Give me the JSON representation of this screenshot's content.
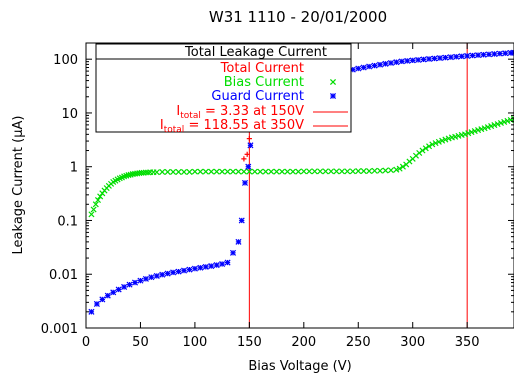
{
  "chart_data": {
    "type": "scatter",
    "title": "W31 1110 - 20/01/2000",
    "xlabel": "Bias Voltage (V)",
    "ylabel": "Leakage Current (µA)",
    "xlim": [
      0,
      393
    ],
    "ylim": [
      0.001,
      200
    ],
    "yscale": "log",
    "xticks": [
      0,
      50,
      100,
      150,
      200,
      250,
      300,
      350
    ],
    "yticks": [
      {
        "value": 0.001,
        "label": "0.001"
      },
      {
        "value": 0.01,
        "label": "0.01"
      },
      {
        "value": 0.1,
        "label": "0.1"
      },
      {
        "value": 1,
        "label": "1"
      },
      {
        "value": 10,
        "label": "10"
      },
      {
        "value": 100,
        "label": "100"
      }
    ],
    "legend": {
      "title": "Total Leakage Current",
      "placement": "top-left",
      "entries": [
        {
          "name": "Total Current",
          "color": "#ff0000",
          "marker": "plus"
        },
        {
          "name": "Bias Current",
          "color": "#00dd00",
          "marker": "cross"
        },
        {
          "name": "Guard Current",
          "color": "#0000ff",
          "marker": "star"
        }
      ],
      "annotations": [
        {
          "prefix": "I",
          "sub": "total",
          "rest": " = 3.33 at 150V",
          "color": "#ff0000"
        },
        {
          "prefix": "I",
          "sub": "total",
          "rest": " = 118.55 at 350V",
          "color": "#ff0000"
        }
      ]
    },
    "reference_lines": [
      {
        "x": 150,
        "color": "#ff0000"
      },
      {
        "x": 350,
        "color": "#ff0000"
      }
    ],
    "series": [
      {
        "name": "Total Current",
        "color": "#ff0000",
        "marker": "plus",
        "points": [
          [
            145,
            1.4
          ],
          [
            148,
            1.7
          ],
          [
            150,
            3.33
          ]
        ]
      },
      {
        "name": "Bias Current",
        "color": "#00dd00",
        "marker": "cross",
        "points": [
          [
            5,
            0.13
          ],
          [
            7,
            0.16
          ],
          [
            9,
            0.2
          ],
          [
            11,
            0.24
          ],
          [
            13,
            0.28
          ],
          [
            15,
            0.32
          ],
          [
            17,
            0.36
          ],
          [
            19,
            0.4
          ],
          [
            21,
            0.44
          ],
          [
            23,
            0.48
          ],
          [
            25,
            0.52
          ],
          [
            27,
            0.55
          ],
          [
            29,
            0.58
          ],
          [
            31,
            0.61
          ],
          [
            33,
            0.63
          ],
          [
            35,
            0.66
          ],
          [
            37,
            0.68
          ],
          [
            39,
            0.7
          ],
          [
            41,
            0.71
          ],
          [
            43,
            0.73
          ],
          [
            45,
            0.74
          ],
          [
            47,
            0.75
          ],
          [
            49,
            0.76
          ],
          [
            51,
            0.77
          ],
          [
            53,
            0.77
          ],
          [
            55,
            0.78
          ],
          [
            57,
            0.78
          ],
          [
            59,
            0.79
          ],
          [
            62,
            0.79
          ],
          [
            65,
            0.79
          ],
          [
            70,
            0.8
          ],
          [
            75,
            0.8
          ],
          [
            80,
            0.8
          ],
          [
            85,
            0.8
          ],
          [
            90,
            0.8
          ],
          [
            95,
            0.8
          ],
          [
            100,
            0.81
          ],
          [
            105,
            0.81
          ],
          [
            110,
            0.81
          ],
          [
            115,
            0.81
          ],
          [
            120,
            0.81
          ],
          [
            125,
            0.81
          ],
          [
            130,
            0.81
          ],
          [
            135,
            0.81
          ],
          [
            140,
            0.81
          ],
          [
            145,
            0.81
          ],
          [
            150,
            0.81
          ],
          [
            155,
            0.81
          ],
          [
            160,
            0.81
          ],
          [
            165,
            0.81
          ],
          [
            170,
            0.81
          ],
          [
            175,
            0.81
          ],
          [
            180,
            0.81
          ],
          [
            185,
            0.81
          ],
          [
            190,
            0.81
          ],
          [
            195,
            0.81
          ],
          [
            200,
            0.82
          ],
          [
            205,
            0.82
          ],
          [
            210,
            0.82
          ],
          [
            215,
            0.82
          ],
          [
            220,
            0.82
          ],
          [
            225,
            0.82
          ],
          [
            230,
            0.82
          ],
          [
            235,
            0.82
          ],
          [
            240,
            0.82
          ],
          [
            245,
            0.82
          ],
          [
            250,
            0.83
          ],
          [
            255,
            0.83
          ],
          [
            260,
            0.83
          ],
          [
            265,
            0.84
          ],
          [
            270,
            0.84
          ],
          [
            275,
            0.85
          ],
          [
            280,
            0.86
          ],
          [
            285,
            0.88
          ],
          [
            288,
            0.92
          ],
          [
            291,
            1.0
          ],
          [
            294,
            1.1
          ],
          [
            297,
            1.25
          ],
          [
            300,
            1.4
          ],
          [
            303,
            1.6
          ],
          [
            306,
            1.8
          ],
          [
            309,
            2.0
          ],
          [
            312,
            2.2
          ],
          [
            315,
            2.4
          ],
          [
            318,
            2.6
          ],
          [
            321,
            2.75
          ],
          [
            324,
            2.9
          ],
          [
            327,
            3.05
          ],
          [
            330,
            3.2
          ],
          [
            333,
            3.35
          ],
          [
            336,
            3.5
          ],
          [
            339,
            3.6
          ],
          [
            342,
            3.75
          ],
          [
            345,
            3.9
          ],
          [
            348,
            4.0
          ],
          [
            351,
            4.2
          ],
          [
            354,
            4.4
          ],
          [
            357,
            4.6
          ],
          [
            360,
            4.8
          ],
          [
            363,
            5.0
          ],
          [
            366,
            5.2
          ],
          [
            369,
            5.45
          ],
          [
            372,
            5.7
          ],
          [
            375,
            5.95
          ],
          [
            378,
            6.2
          ],
          [
            381,
            6.5
          ],
          [
            384,
            6.8
          ],
          [
            387,
            7.1
          ],
          [
            390,
            7.4
          ],
          [
            393,
            7.8
          ]
        ]
      },
      {
        "name": "Guard Current",
        "color": "#0000ff",
        "marker": "star",
        "points": [
          [
            5,
            0.002
          ],
          [
            10,
            0.0028
          ],
          [
            15,
            0.0034
          ],
          [
            20,
            0.004
          ],
          [
            25,
            0.0046
          ],
          [
            30,
            0.0052
          ],
          [
            35,
            0.0058
          ],
          [
            40,
            0.0064
          ],
          [
            45,
            0.007
          ],
          [
            50,
            0.0076
          ],
          [
            55,
            0.0082
          ],
          [
            60,
            0.0088
          ],
          [
            65,
            0.0093
          ],
          [
            70,
            0.0098
          ],
          [
            75,
            0.0103
          ],
          [
            80,
            0.0108
          ],
          [
            85,
            0.0112
          ],
          [
            90,
            0.0117
          ],
          [
            95,
            0.0122
          ],
          [
            100,
            0.0127
          ],
          [
            105,
            0.0132
          ],
          [
            110,
            0.0137
          ],
          [
            115,
            0.0142
          ],
          [
            120,
            0.0148
          ],
          [
            125,
            0.0155
          ],
          [
            130,
            0.0165
          ],
          [
            135,
            0.025
          ],
          [
            140,
            0.04
          ],
          [
            143,
            0.1
          ],
          [
            146,
            0.5
          ],
          [
            149,
            1.0
          ],
          [
            151,
            2.5
          ],
          [
            154,
            6.0
          ],
          [
            157,
            9.0
          ],
          [
            160,
            12.0
          ],
          [
            165,
            15.0
          ],
          [
            170,
            19.0
          ],
          [
            175,
            22.0
          ],
          [
            180,
            25.0
          ],
          [
            185,
            28.0
          ],
          [
            190,
            31.0
          ],
          [
            195,
            34.0
          ],
          [
            200,
            37.0
          ],
          [
            205,
            40.0
          ],
          [
            210,
            43.0
          ],
          [
            215,
            46.0
          ],
          [
            220,
            49.0
          ],
          [
            225,
            52.0
          ],
          [
            230,
            55.0
          ],
          [
            235,
            58.0
          ],
          [
            240,
            61.0
          ],
          [
            245,
            64.0
          ],
          [
            250,
            67.0
          ],
          [
            255,
            70.0
          ],
          [
            260,
            73.0
          ],
          [
            265,
            76.0
          ],
          [
            270,
            79.0
          ],
          [
            275,
            82.0
          ],
          [
            280,
            85.0
          ],
          [
            285,
            88.0
          ],
          [
            290,
            91.0
          ],
          [
            295,
            93.0
          ],
          [
            300,
            95.0
          ],
          [
            305,
            97.0
          ],
          [
            310,
            99.0
          ],
          [
            315,
            101.0
          ],
          [
            320,
            103.0
          ],
          [
            325,
            105.0
          ],
          [
            330,
            107.0
          ],
          [
            335,
            109.0
          ],
          [
            340,
            111.0
          ],
          [
            345,
            113.0
          ],
          [
            350,
            115.0
          ],
          [
            355,
            117.0
          ],
          [
            360,
            119.0
          ],
          [
            365,
            121.0
          ],
          [
            370,
            123.0
          ],
          [
            375,
            125.0
          ],
          [
            380,
            127.0
          ],
          [
            385,
            129.0
          ],
          [
            390,
            131.0
          ],
          [
            393,
            132.0
          ]
        ]
      }
    ]
  }
}
